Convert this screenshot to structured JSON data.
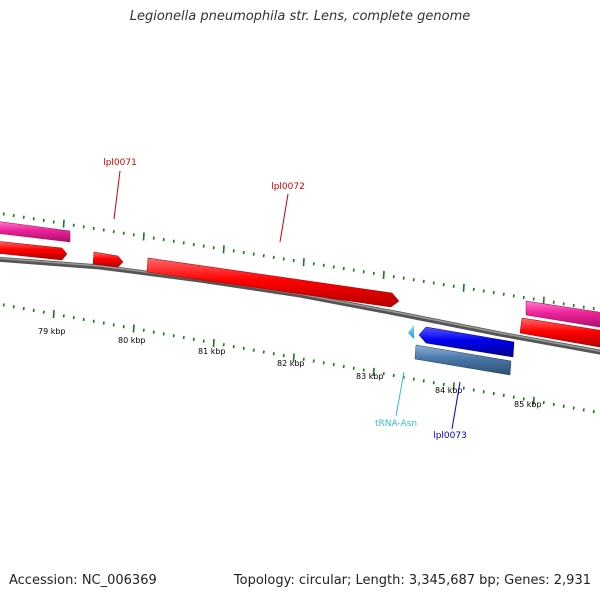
{
  "header": {
    "title": "Legionella pneumophila str. Lens, complete genome"
  },
  "footer": {
    "accession": "Accession: NC_006369",
    "summary": "Topology: circular; Length: 3,345,687 bp; Genes: 2,931"
  },
  "axis": {
    "ticks": [
      "79 kbp",
      "80 kbp",
      "81 kbp",
      "82 kbp",
      "83 kbp",
      "84 kbp",
      "85 kbp"
    ]
  },
  "features": [
    {
      "id": "lpl0071",
      "label": "lpl0071",
      "color": "#cc0000",
      "strand": "forward"
    },
    {
      "id": "lpl0072",
      "label": "lpl0072",
      "color": "#cc0000",
      "strand": "forward"
    },
    {
      "id": "trna-asn",
      "label": "tRNA-Asn",
      "color": "#33bbdd",
      "strand": "reverse"
    },
    {
      "id": "lpl0073",
      "label": "lpl0073",
      "color": "#0000cc",
      "strand": "reverse"
    }
  ],
  "colors": {
    "cds_forward": "#ff0000",
    "pink_track": "#ee2299",
    "cds_reverse": "#0000ee",
    "gene_reverse": "#4477aa",
    "trna": "#33bbee",
    "backbone": "#777777",
    "tick": "#1a7a1a"
  }
}
